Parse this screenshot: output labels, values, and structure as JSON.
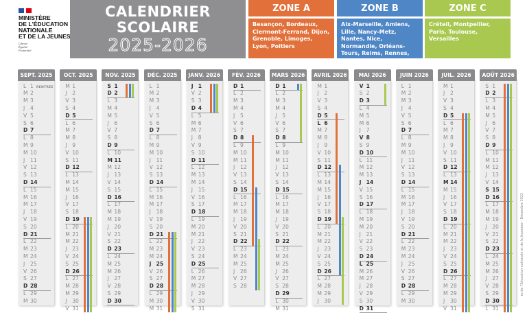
{
  "logo": {
    "ministry_lines": [
      "MINISTÈRE",
      "DE L'ÉDUCATION",
      "NATIONALE",
      "ET DE LA JEUNESSE"
    ],
    "motto_lines": [
      "Liberté",
      "Égalité",
      "Fraternité"
    ],
    "flag_colors": [
      "#2a4fa0",
      "#e1000f"
    ]
  },
  "title": {
    "line1": "CALENDRIER",
    "line2": "SCOLAIRE",
    "years": "2025-2026"
  },
  "zones": [
    {
      "label": "ZONE A",
      "color": "#e2703a",
      "academies": "Besançon, Bordeaux, Clermont-Ferrand, Dijon, Grenoble, Limoges, Lyon, Poitiers"
    },
    {
      "label": "ZONE B",
      "color": "#4e86c6",
      "academies": "Aix-Marseille, Amiens, Lille, Nancy-Metz, Nantes, Nice, Normandie, Orléans-Tours, Reims, Rennes, Strasbourg"
    },
    {
      "label": "ZONE C",
      "color": "#a8c850",
      "academies": "Créteil, Montpellier, Paris, Toulouse, Versailles"
    }
  ],
  "weekday_letters": [
    "L",
    "M",
    "M",
    "J",
    "V",
    "S",
    "D"
  ],
  "months": [
    {
      "label": "SEPT. 2025",
      "first_weekday": 0,
      "days": 30,
      "holidays": [],
      "notes": {
        "1": "RENTRÉE"
      },
      "bars": []
    },
    {
      "label": "OCT. 2025",
      "first_weekday": 2,
      "days": 31,
      "holidays": [],
      "bars": [
        {
          "zone": 0,
          "from": 19,
          "to": 31
        },
        {
          "zone": 1,
          "from": 19,
          "to": 31
        },
        {
          "zone": 2,
          "from": 19,
          "to": 31
        }
      ]
    },
    {
      "label": "NOV. 2025",
      "first_weekday": 5,
      "days": 30,
      "holidays": [
        1,
        11
      ],
      "bars": [
        {
          "zone": 0,
          "from": 1,
          "to": 2
        },
        {
          "zone": 1,
          "from": 1,
          "to": 2
        },
        {
          "zone": 2,
          "from": 1,
          "to": 2
        }
      ]
    },
    {
      "label": "DÉC. 2025",
      "first_weekday": 0,
      "days": 31,
      "holidays": [
        25
      ],
      "bars": [
        {
          "zone": 0,
          "from": 21,
          "to": 31
        },
        {
          "zone": 1,
          "from": 21,
          "to": 31
        },
        {
          "zone": 2,
          "from": 21,
          "to": 31
        }
      ]
    },
    {
      "label": "JANV. 2026",
      "first_weekday": 3,
      "days": 31,
      "holidays": [
        1
      ],
      "bars": [
        {
          "zone": 0,
          "from": 1,
          "to": 4
        },
        {
          "zone": 1,
          "from": 1,
          "to": 4
        },
        {
          "zone": 2,
          "from": 1,
          "to": 4
        }
      ]
    },
    {
      "label": "FÉV. 2026",
      "first_weekday": 6,
      "days": 28,
      "holidays": [],
      "bars": [
        {
          "zone": 0,
          "from": 8,
          "to": 22
        },
        {
          "zone": 1,
          "from": 15,
          "to": 28
        },
        {
          "zone": 2,
          "from": 22,
          "to": 28
        }
      ]
    },
    {
      "label": "MARS 2026",
      "first_weekday": 6,
      "days": 31,
      "holidays": [],
      "bars": [
        {
          "zone": 1,
          "from": 1,
          "to": 1
        },
        {
          "zone": 2,
          "from": 1,
          "to": 8
        }
      ]
    },
    {
      "label": "AVRIL 2026",
      "first_weekday": 2,
      "days": 30,
      "holidays": [
        6
      ],
      "bars": [
        {
          "zone": 0,
          "from": 5,
          "to": 19
        },
        {
          "zone": 1,
          "from": 12,
          "to": 26
        },
        {
          "zone": 2,
          "from": 19,
          "to": 30
        }
      ]
    },
    {
      "label": "MAI 2026",
      "first_weekday": 4,
      "days": 31,
      "holidays": [
        1,
        8,
        14,
        25
      ],
      "bars": [
        {
          "zone": 2,
          "from": 1,
          "to": 3
        }
      ]
    },
    {
      "label": "JUIN 2026",
      "first_weekday": 0,
      "days": 30,
      "holidays": [],
      "bars": []
    },
    {
      "label": "JUIL. 2026",
      "first_weekday": 2,
      "days": 31,
      "holidays": [
        14
      ],
      "bars": [
        {
          "zone": 0,
          "from": 5,
          "to": 31
        },
        {
          "zone": 1,
          "from": 5,
          "to": 31
        },
        {
          "zone": 2,
          "from": 5,
          "to": 31
        }
      ]
    },
    {
      "label": "AOÛT 2026",
      "first_weekday": 5,
      "days": 31,
      "holidays": [
        15
      ],
      "bars": [
        {
          "zone": 0,
          "from": 1,
          "to": 31
        },
        {
          "zone": 1,
          "from": 1,
          "to": 31
        },
        {
          "zone": 2,
          "from": 1,
          "to": 31
        }
      ]
    }
  ],
  "copyright": "re de l'Éducation nationale et de la Jeunesse - Décembre 2022"
}
